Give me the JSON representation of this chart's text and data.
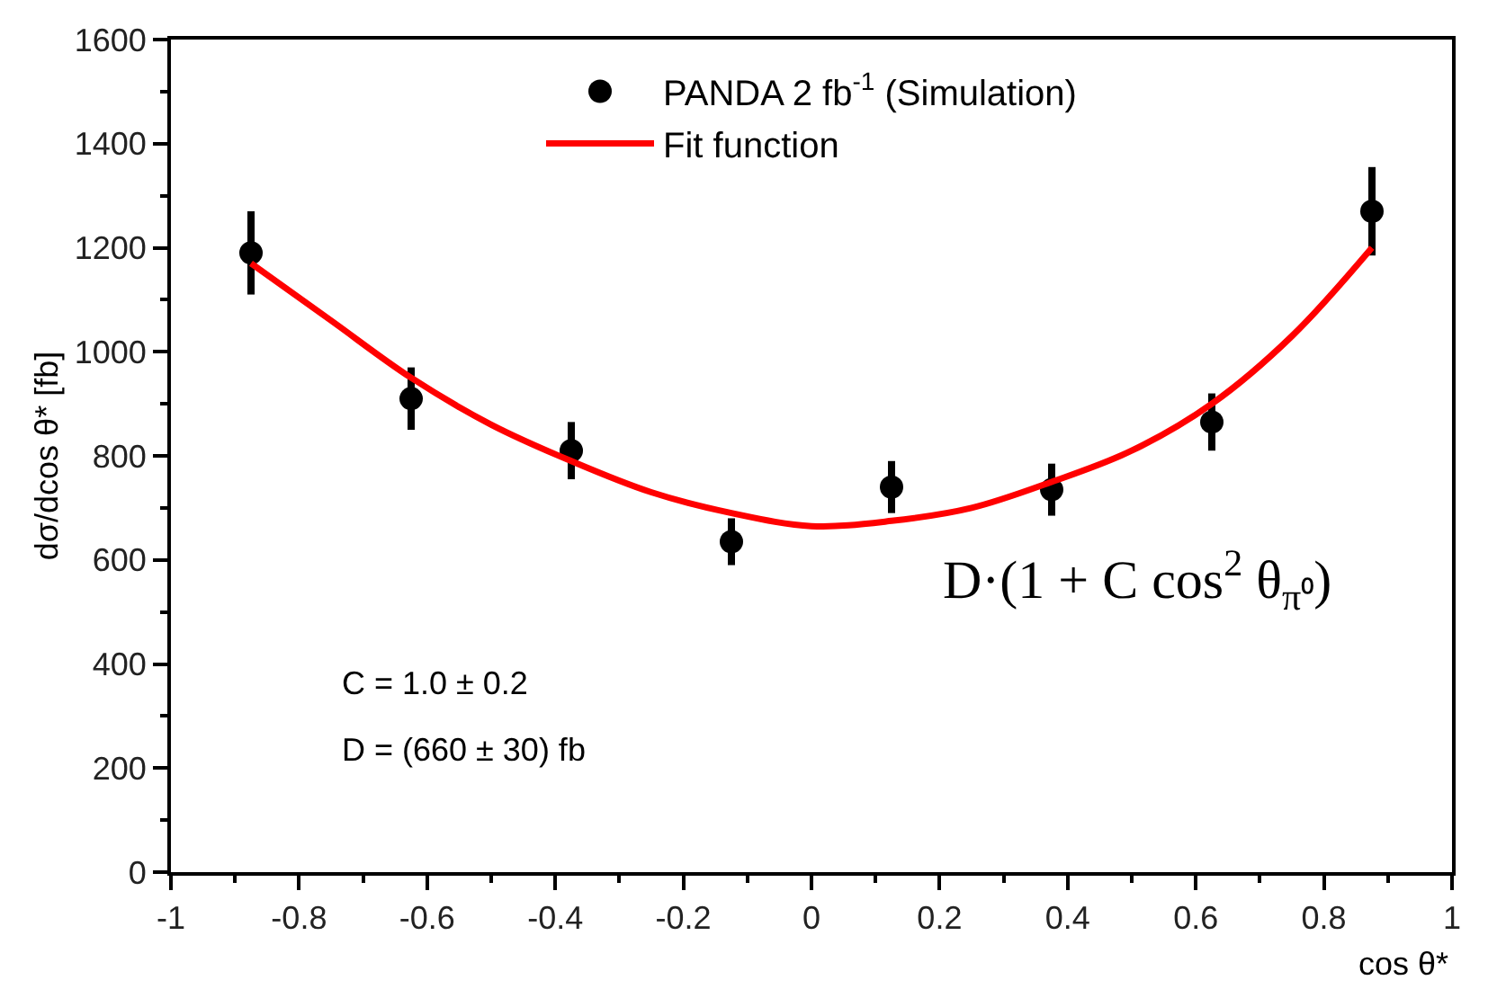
{
  "chart_data": {
    "type": "scatter",
    "xlabel": "cos θ*",
    "ylabel": "dσ/dcos θ* [fb]",
    "xlim": [
      -1,
      1
    ],
    "xticks": [
      -1,
      -0.8,
      -0.6,
      -0.4,
      -0.2,
      0,
      0.2,
      0.4,
      0.6,
      0.8,
      1
    ],
    "ylim": [
      0,
      1600
    ],
    "yticks": [
      0,
      200,
      400,
      600,
      800,
      1000,
      1200,
      1400,
      1600
    ],
    "legend": "top",
    "series": [
      {
        "name": "PANDA 2 fb$^{-1}$ (Simulation)",
        "marker": "circle",
        "color": "#000000",
        "x": [
          -0.875,
          -0.625,
          -0.375,
          -0.125,
          0.125,
          0.375,
          0.625,
          0.875
        ],
        "values": [
          1190,
          910,
          810,
          635,
          740,
          735,
          865,
          1270
        ],
        "errors": [
          80,
          60,
          55,
          45,
          50,
          50,
          55,
          85
        ]
      },
      {
        "name": "Fit function",
        "type": "line",
        "color": "#ff0000",
        "x": [
          -0.875,
          -0.75,
          -0.625,
          -0.5,
          -0.375,
          -0.25,
          -0.125,
          0,
          0.125,
          0.25,
          0.375,
          0.5,
          0.625,
          0.75,
          0.875
        ],
        "values": [
          1170,
          1060,
          950,
          860,
          790,
          730,
          690,
          665,
          675,
          700,
          750,
          810,
          900,
          1030,
          1200
        ]
      }
    ],
    "annotations": [
      "C = 1.0 ± 0.2",
      "D = (660 ± 30) fb",
      "D·(1 + C cos$^{2}$ θ$_{π⁰}$)"
    ]
  }
}
